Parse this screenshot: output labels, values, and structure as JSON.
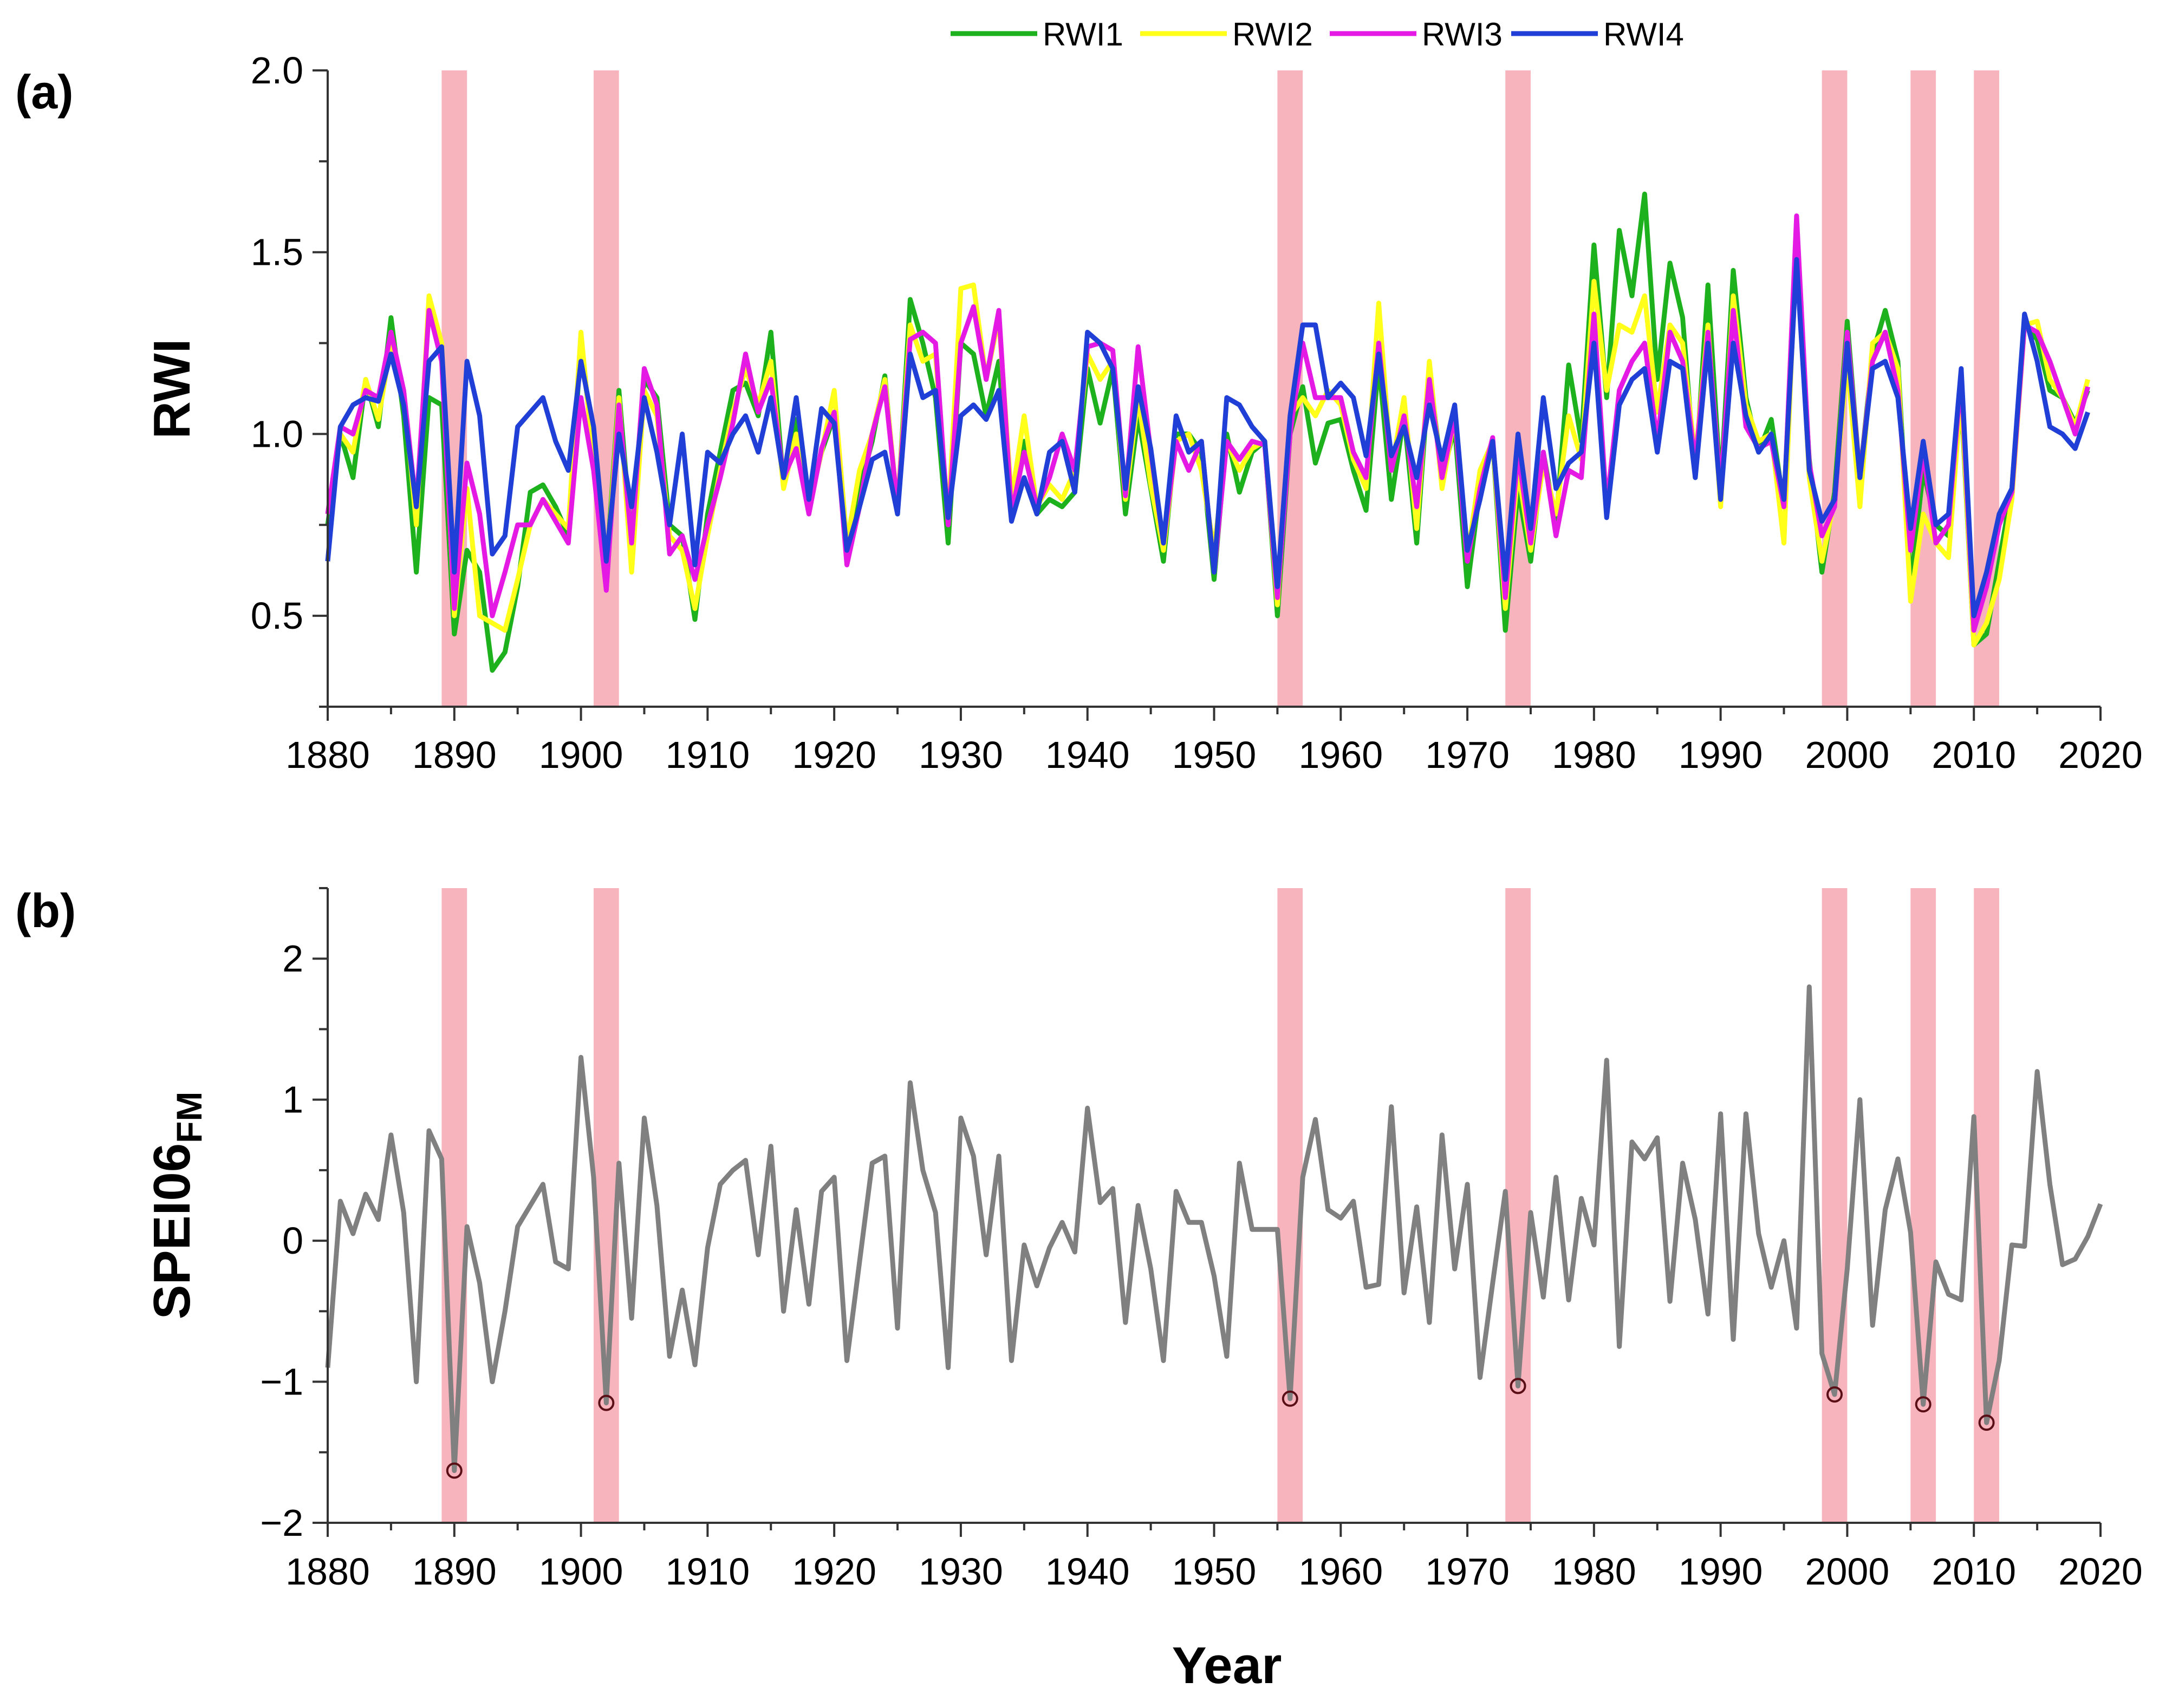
{
  "chart_data": [
    {
      "panel": "(a)",
      "type": "line",
      "ylabel": "RWI",
      "xlim": [
        1880,
        2020
      ],
      "ylim": [
        0.25,
        2.0
      ],
      "x_ticks": [
        "1880",
        "1890",
        "1900",
        "1910",
        "1920",
        "1930",
        "1940",
        "1950",
        "1960",
        "1970",
        "1980",
        "1990",
        "2000",
        "2010",
        "2020"
      ],
      "y_ticks": [
        "0.5",
        "1.0",
        "1.5",
        "2.0"
      ],
      "x_tick_values": [
        1880,
        1890,
        1900,
        1910,
        1920,
        1930,
        1940,
        1950,
        1960,
        1970,
        1980,
        1990,
        2000,
        2010,
        2020
      ],
      "y_tick_values": [
        0.5,
        1.0,
        1.5,
        2.0
      ],
      "legend_position": "top",
      "start_year": 1880,
      "series": [
        {
          "name": "RWI1",
          "color": "#1db21d",
          "values": [
            0.75,
            1.0,
            0.88,
            1.15,
            1.02,
            1.32,
            1.05,
            0.62,
            1.1,
            1.08,
            0.45,
            0.68,
            0.62,
            0.35,
            0.4,
            0.58,
            0.84,
            0.86,
            0.8,
            0.72,
            1.25,
            0.95,
            0.62,
            1.12,
            0.7,
            1.15,
            1.1,
            0.75,
            0.72,
            0.49,
            0.78,
            0.95,
            1.12,
            1.14,
            1.05,
            1.28,
            0.86,
            1.04,
            0.81,
            0.95,
            1.05,
            0.68,
            0.85,
            0.98,
            1.16,
            0.78,
            1.37,
            1.25,
            1.1,
            0.7,
            1.25,
            1.22,
            1.05,
            1.2,
            0.78,
            0.98,
            0.78,
            0.82,
            0.8,
            0.84,
            1.18,
            1.03,
            1.18,
            0.78,
            1.05,
            0.85,
            0.65,
            1.0,
            1.0,
            0.95,
            0.6,
            1.0,
            0.84,
            0.95,
            0.98,
            0.5,
            1.0,
            1.13,
            0.92,
            1.03,
            1.04,
            0.9,
            0.79,
            1.2,
            0.82,
            1.05,
            0.7,
            1.18,
            0.88,
            1.02,
            0.58,
            0.85,
            0.98,
            0.46,
            0.85,
            0.65,
            0.95,
            0.75,
            1.19,
            0.98,
            1.52,
            1.1,
            1.56,
            1.38,
            1.66,
            1.15,
            1.47,
            1.32,
            0.88,
            1.41,
            0.85,
            1.45,
            1.1,
            0.95,
            1.04,
            0.8,
            1.5,
            0.93,
            0.62,
            0.84,
            1.31,
            0.88,
            1.22,
            1.34,
            1.2,
            0.58,
            0.9,
            0.75,
            0.72,
            1.1,
            0.42,
            0.45,
            0.65,
            0.85,
            1.3,
            1.26,
            1.12,
            1.1,
            1.03,
            1.12
          ]
        },
        {
          "name": "RWI2",
          "color": "#ffff1a",
          "values": [
            0.78,
            1.0,
            0.95,
            1.15,
            1.04,
            1.25,
            1.12,
            0.75,
            1.38,
            1.25,
            0.5,
            0.85,
            0.5,
            0.48,
            0.46,
            0.6,
            0.75,
            0.82,
            0.78,
            0.74,
            1.28,
            0.92,
            0.6,
            1.1,
            0.62,
            1.12,
            1.05,
            0.72,
            0.68,
            0.52,
            0.72,
            0.9,
            1.06,
            1.18,
            1.08,
            1.2,
            0.85,
            1.0,
            0.8,
            0.95,
            1.12,
            0.7,
            0.9,
            1.0,
            1.15,
            0.8,
            1.3,
            1.2,
            1.22,
            0.76,
            1.4,
            1.41,
            1.15,
            1.32,
            0.82,
            1.05,
            0.8,
            0.86,
            0.82,
            0.9,
            1.22,
            1.15,
            1.2,
            0.82,
            1.1,
            0.86,
            0.68,
            0.98,
            1.0,
            0.9,
            0.68,
            0.98,
            0.9,
            0.96,
            0.98,
            0.53,
            1.05,
            1.1,
            1.05,
            1.12,
            1.08,
            0.93,
            0.85,
            1.36,
            0.9,
            1.1,
            0.74,
            1.2,
            0.85,
            1.05,
            0.66,
            0.9,
            0.98,
            0.52,
            0.9,
            0.68,
            0.92,
            0.78,
            1.05,
            0.93,
            1.42,
            1.12,
            1.3,
            1.28,
            1.38,
            1.06,
            1.3,
            1.25,
            0.93,
            1.3,
            0.8,
            1.38,
            1.08,
            0.98,
            1.0,
            0.7,
            1.55,
            0.88,
            0.65,
            0.82,
            1.2,
            0.8,
            1.25,
            1.28,
            1.18,
            0.54,
            0.78,
            0.7,
            0.66,
            1.12,
            0.42,
            0.48,
            0.6,
            0.82,
            1.3,
            1.31,
            1.15,
            1.1,
            1.02,
            1.15
          ]
        },
        {
          "name": "RWI3",
          "color": "#e41ae4",
          "values": [
            0.78,
            1.02,
            1.0,
            1.12,
            1.1,
            1.28,
            1.12,
            0.8,
            1.34,
            1.2,
            0.52,
            0.92,
            0.78,
            0.5,
            0.62,
            0.75,
            0.75,
            0.82,
            0.76,
            0.7,
            1.1,
            0.9,
            0.57,
            1.08,
            0.7,
            1.18,
            1.08,
            0.67,
            0.72,
            0.6,
            0.75,
            0.88,
            1.03,
            1.22,
            1.06,
            1.15,
            0.88,
            0.96,
            0.78,
            0.96,
            1.06,
            0.64,
            0.8,
            1.0,
            1.13,
            0.8,
            1.26,
            1.28,
            1.25,
            0.75,
            1.25,
            1.35,
            1.15,
            1.34,
            0.78,
            0.95,
            0.8,
            0.88,
            1.0,
            0.9,
            1.24,
            1.25,
            1.23,
            0.83,
            1.24,
            0.95,
            0.7,
            0.98,
            0.9,
            0.98,
            0.62,
            0.98,
            0.93,
            0.98,
            0.97,
            0.55,
            1.0,
            1.25,
            1.1,
            1.1,
            1.1,
            0.95,
            0.88,
            1.25,
            0.9,
            1.05,
            0.8,
            1.15,
            0.88,
            1.05,
            0.65,
            0.85,
            0.99,
            0.55,
            0.95,
            0.7,
            0.95,
            0.72,
            0.9,
            0.88,
            1.33,
            0.8,
            1.12,
            1.2,
            1.25,
            0.98,
            1.28,
            1.2,
            0.92,
            1.28,
            0.85,
            1.34,
            1.02,
            0.96,
            0.98,
            0.8,
            1.6,
            0.92,
            0.72,
            0.8,
            1.28,
            0.88,
            1.2,
            1.28,
            1.12,
            0.68,
            0.95,
            0.7,
            0.75,
            1.16,
            0.46,
            0.58,
            0.75,
            0.84,
            1.3,
            1.28,
            1.2,
            1.1,
            1.0,
            1.13
          ]
        },
        {
          "name": "RWI4",
          "color": "#1f3fd6",
          "values": [
            0.65,
            1.02,
            1.08,
            1.1,
            1.09,
            1.22,
            1.08,
            0.8,
            1.2,
            1.24,
            0.62,
            1.2,
            1.05,
            0.67,
            0.72,
            1.02,
            1.06,
            1.1,
            0.98,
            0.9,
            1.2,
            1.02,
            0.65,
            1.0,
            0.8,
            1.1,
            0.95,
            0.75,
            1.0,
            0.64,
            0.95,
            0.92,
            1.0,
            1.05,
            0.95,
            1.1,
            0.88,
            1.1,
            0.82,
            1.07,
            1.03,
            0.68,
            0.8,
            0.93,
            0.95,
            0.78,
            1.22,
            1.1,
            1.12,
            0.77,
            1.05,
            1.08,
            1.04,
            1.12,
            0.76,
            0.88,
            0.78,
            0.95,
            0.98,
            0.84,
            1.28,
            1.25,
            1.18,
            0.85,
            1.13,
            0.96,
            0.7,
            1.05,
            0.95,
            0.98,
            0.62,
            1.1,
            1.08,
            1.02,
            0.98,
            0.58,
            1.05,
            1.3,
            1.3,
            1.1,
            1.14,
            1.1,
            0.94,
            1.22,
            0.94,
            1.02,
            0.88,
            1.08,
            0.93,
            1.08,
            0.68,
            0.82,
            0.98,
            0.6,
            1.0,
            0.74,
            1.1,
            0.85,
            0.92,
            0.95,
            1.25,
            0.77,
            1.08,
            1.15,
            1.18,
            0.95,
            1.2,
            1.18,
            0.88,
            1.25,
            0.82,
            1.25,
            1.05,
            0.95,
            1.0,
            0.82,
            1.48,
            0.9,
            0.76,
            0.82,
            1.25,
            0.88,
            1.18,
            1.2,
            1.1,
            0.74,
            0.98,
            0.75,
            0.78,
            1.18,
            0.5,
            0.62,
            0.78,
            0.85,
            1.33,
            1.2,
            1.02,
            1.0,
            0.96,
            1.06
          ]
        }
      ],
      "drought_years": [
        1890,
        1902,
        1956,
        1974,
        1999,
        2006,
        2011
      ]
    },
    {
      "panel": "(b)",
      "type": "line",
      "ylabel": "SPEI06",
      "ylabel_subscript": "FM",
      "xlabel": "Year",
      "xlim": [
        1880,
        2020
      ],
      "ylim": [
        -2,
        2.5
      ],
      "x_ticks": [
        "1880",
        "1890",
        "1900",
        "1910",
        "1920",
        "1930",
        "1940",
        "1950",
        "1960",
        "1970",
        "1980",
        "1990",
        "2000",
        "2010",
        "2020"
      ],
      "y_ticks": [
        "−2",
        "−1",
        "0",
        "1",
        "2"
      ],
      "x_tick_values": [
        1880,
        1890,
        1900,
        1910,
        1920,
        1930,
        1940,
        1950,
        1960,
        1970,
        1980,
        1990,
        2000,
        2010,
        2020
      ],
      "y_tick_values": [
        -2,
        -1,
        0,
        1,
        2
      ],
      "start_year": 1880,
      "series": [
        {
          "name": "SPEI06FM",
          "color": "#808080",
          "values": [
            -0.9,
            0.28,
            0.05,
            0.33,
            0.15,
            0.75,
            0.2,
            -1.0,
            0.78,
            0.58,
            -1.63,
            0.1,
            -0.3,
            -1.0,
            -0.5,
            0.1,
            0.25,
            0.4,
            -0.15,
            -0.2,
            1.3,
            0.45,
            -1.15,
            0.55,
            -0.55,
            0.87,
            0.25,
            -0.82,
            -0.35,
            -0.88,
            -0.05,
            0.4,
            0.5,
            0.57,
            -0.1,
            0.67,
            -0.5,
            0.22,
            -0.45,
            0.35,
            0.45,
            -0.85,
            -0.15,
            0.55,
            0.6,
            -0.62,
            1.12,
            0.5,
            0.2,
            -0.9,
            0.87,
            0.6,
            -0.1,
            0.6,
            -0.85,
            -0.03,
            -0.32,
            -0.05,
            0.13,
            -0.08,
            0.94,
            0.27,
            0.37,
            -0.58,
            0.25,
            -0.2,
            -0.85,
            0.35,
            0.13,
            0.13,
            -0.25,
            -0.82,
            0.55,
            0.08,
            0.08,
            0.08,
            -1.12,
            0.45,
            0.86,
            0.22,
            0.16,
            0.28,
            -0.33,
            -0.31,
            0.95,
            -0.37,
            0.24,
            -0.58,
            0.75,
            -0.2,
            0.4,
            -0.97,
            -0.3,
            0.35,
            -1.03,
            0.2,
            -0.4,
            0.45,
            -0.42,
            0.3,
            -0.03,
            1.28,
            -0.75,
            0.7,
            0.58,
            0.73,
            -0.43,
            0.55,
            0.15,
            -0.52,
            0.9,
            -0.7,
            0.9,
            0.05,
            -0.33,
            0.0,
            -0.62,
            1.8,
            -0.8,
            -1.09,
            -0.2,
            1.0,
            -0.6,
            0.22,
            0.58,
            0.06,
            -1.16,
            -0.15,
            -0.38,
            -0.42,
            0.88,
            -1.29,
            -0.85,
            -0.03,
            -0.04,
            1.2,
            0.4,
            -0.17,
            -0.13,
            0.03,
            0.26
          ]
        }
      ],
      "highlighted_points": [
        {
          "year": 1890,
          "value": -1.63
        },
        {
          "year": 1902,
          "value": -1.15
        },
        {
          "year": 1956,
          "value": -1.12
        },
        {
          "year": 1974,
          "value": -1.03
        },
        {
          "year": 1999,
          "value": -1.09
        },
        {
          "year": 2006,
          "value": -1.16
        },
        {
          "year": 2011,
          "value": -1.29
        }
      ]
    }
  ]
}
